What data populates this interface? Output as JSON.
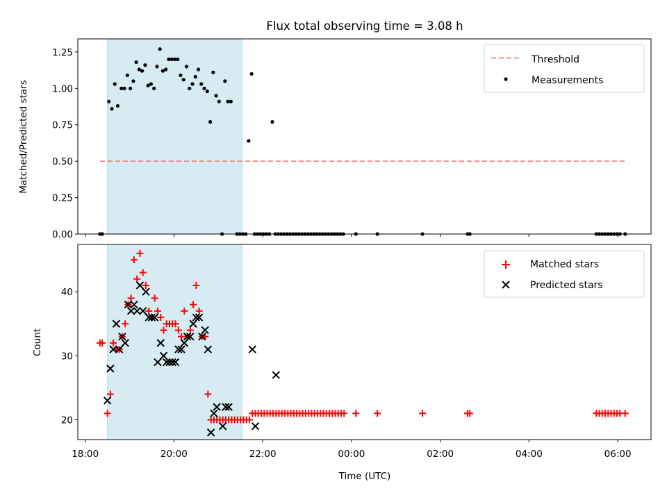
{
  "figure": {
    "title": "Flux total observing time = 3.08 h",
    "shaded_interval": {
      "x": [
        "18:30",
        "21:32"
      ],
      "color": "#add8e6"
    }
  },
  "chart_data": [
    {
      "type": "scatter",
      "title": "Flux total observing time = 3.08 h",
      "ylabel": "Matched/Predicted stars",
      "xlabel": "",
      "xlim": [
        "17:50",
        "06:45"
      ],
      "ylim": [
        0,
        1.34
      ],
      "xticks": [
        "18:00",
        "20:00",
        "22:00",
        "00:00",
        "02:00",
        "04:00",
        "06:00"
      ],
      "yticks": [
        "0.00",
        "0.25",
        "0.50",
        "0.75",
        "1.00",
        "1.25"
      ],
      "legend": {
        "position": "upper right",
        "entries": [
          "Threshold",
          "Measurements"
        ]
      },
      "threshold": {
        "name": "Threshold",
        "value": 0.5,
        "x": [
          "18:20",
          "06:10"
        ],
        "color": "#ff7f7f"
      },
      "series": [
        {
          "name": "Measurements",
          "color": "#000000",
          "marker": "dot",
          "points": [
            [
              "18:20",
              0
            ],
            [
              "18:23",
              0
            ],
            [
              "18:32",
              0.91
            ],
            [
              "18:36",
              0.86
            ],
            [
              "18:40",
              1.03
            ],
            [
              "18:44",
              0.88
            ],
            [
              "18:49",
              1.0
            ],
            [
              "18:53",
              1.0
            ],
            [
              "18:57",
              1.09
            ],
            [
              "19:01",
              1.0
            ],
            [
              "19:05",
              1.05
            ],
            [
              "19:09",
              1.18
            ],
            [
              "19:13",
              1.13
            ],
            [
              "19:17",
              1.12
            ],
            [
              "19:21",
              1.16
            ],
            [
              "19:25",
              1.02
            ],
            [
              "19:29",
              1.03
            ],
            [
              "19:33",
              1.0
            ],
            [
              "19:37",
              1.15
            ],
            [
              "19:41",
              1.27
            ],
            [
              "19:45",
              1.12
            ],
            [
              "19:49",
              1.13
            ],
            [
              "19:53",
              1.2
            ],
            [
              "19:57",
              1.2
            ],
            [
              "20:01",
              1.2
            ],
            [
              "20:05",
              1.2
            ],
            [
              "20:09",
              1.09
            ],
            [
              "20:13",
              1.06
            ],
            [
              "20:17",
              1.15
            ],
            [
              "20:21",
              1.0
            ],
            [
              "20:25",
              1.03
            ],
            [
              "20:29",
              1.08
            ],
            [
              "20:33",
              1.13
            ],
            [
              "20:37",
              1.03
            ],
            [
              "20:41",
              1.0
            ],
            [
              "20:45",
              0.98
            ],
            [
              "20:49",
              0.77
            ],
            [
              "20:53",
              1.11
            ],
            [
              "20:57",
              0.95
            ],
            [
              "21:01",
              0.91
            ],
            [
              "21:05",
              0
            ],
            [
              "21:09",
              1.05
            ],
            [
              "21:13",
              0.91
            ],
            [
              "21:17",
              0.91
            ],
            [
              "21:25",
              0
            ],
            [
              "21:29",
              0
            ],
            [
              "21:33",
              0
            ],
            [
              "21:37",
              0
            ],
            [
              "21:41",
              0.64
            ],
            [
              "21:45",
              1.1
            ],
            [
              "21:49",
              0
            ],
            [
              "21:53",
              0
            ],
            [
              "21:57",
              0
            ],
            [
              "22:01",
              0
            ],
            [
              "22:05",
              0
            ],
            [
              "22:09",
              0
            ],
            [
              "22:13",
              0.77
            ],
            [
              "22:17",
              0
            ],
            [
              "22:21",
              0
            ],
            [
              "22:25",
              0
            ],
            [
              "22:29",
              0
            ],
            [
              "22:33",
              0
            ],
            [
              "22:37",
              0
            ],
            [
              "22:41",
              0
            ],
            [
              "22:45",
              0
            ],
            [
              "22:49",
              0
            ],
            [
              "22:53",
              0
            ],
            [
              "22:57",
              0
            ],
            [
              "23:01",
              0
            ],
            [
              "23:05",
              0
            ],
            [
              "23:09",
              0
            ],
            [
              "23:13",
              0
            ],
            [
              "23:17",
              0
            ],
            [
              "23:21",
              0
            ],
            [
              "23:25",
              0
            ],
            [
              "23:29",
              0
            ],
            [
              "23:33",
              0
            ],
            [
              "23:37",
              0
            ],
            [
              "23:41",
              0
            ],
            [
              "23:45",
              0
            ],
            [
              "23:49",
              0
            ],
            [
              "00:06",
              0
            ],
            [
              "00:35",
              0
            ],
            [
              "01:36",
              0
            ],
            [
              "02:37",
              0
            ],
            [
              "02:40",
              0
            ],
            [
              "05:31",
              0
            ],
            [
              "05:35",
              0
            ],
            [
              "05:39",
              0
            ],
            [
              "05:43",
              0
            ],
            [
              "05:47",
              0
            ],
            [
              "05:51",
              0
            ],
            [
              "05:55",
              0
            ],
            [
              "05:59",
              0
            ],
            [
              "06:03",
              0
            ],
            [
              "06:10",
              0
            ]
          ]
        }
      ]
    },
    {
      "type": "scatter",
      "title": "",
      "ylabel": "Count",
      "xlabel": "Time (UTC)",
      "xlim": [
        "17:50",
        "06:45"
      ],
      "ylim": [
        16.9,
        47.4
      ],
      "xticks": [
        "18:00",
        "20:00",
        "22:00",
        "00:00",
        "02:00",
        "04:00",
        "06:00"
      ],
      "yticks": [
        "20",
        "30",
        "40"
      ],
      "legend": {
        "position": "upper right",
        "entries": [
          "Matched stars",
          "Predicted stars"
        ]
      },
      "series": [
        {
          "name": "Matched stars",
          "color": "#ff0000",
          "marker": "plus",
          "points": [
            [
              "18:20",
              32
            ],
            [
              "18:23",
              32
            ],
            [
              "18:30",
              21
            ],
            [
              "18:34",
              24
            ],
            [
              "18:38",
              32
            ],
            [
              "18:42",
              31
            ],
            [
              "18:46",
              31
            ],
            [
              "18:50",
              33
            ],
            [
              "18:54",
              35
            ],
            [
              "18:58",
              38
            ],
            [
              "19:02",
              39
            ],
            [
              "19:06",
              45
            ],
            [
              "19:10",
              42
            ],
            [
              "19:14",
              46
            ],
            [
              "19:18",
              43
            ],
            [
              "19:22",
              41
            ],
            [
              "19:26",
              37
            ],
            [
              "19:30",
              36
            ],
            [
              "19:34",
              39
            ],
            [
              "19:38",
              37
            ],
            [
              "19:42",
              36
            ],
            [
              "19:46",
              34
            ],
            [
              "19:50",
              35
            ],
            [
              "19:54",
              35
            ],
            [
              "19:58",
              35
            ],
            [
              "20:02",
              35
            ],
            [
              "20:06",
              34
            ],
            [
              "20:10",
              33
            ],
            [
              "20:14",
              37
            ],
            [
              "20:18",
              33
            ],
            [
              "20:22",
              34
            ],
            [
              "20:26",
              38
            ],
            [
              "20:30",
              41
            ],
            [
              "20:34",
              37
            ],
            [
              "20:38",
              33
            ],
            [
              "20:42",
              33
            ],
            [
              "20:46",
              24
            ],
            [
              "20:50",
              20
            ],
            [
              "20:54",
              20
            ],
            [
              "20:58",
              20
            ],
            [
              "21:02",
              20
            ],
            [
              "21:06",
              20
            ],
            [
              "21:10",
              20
            ],
            [
              "21:14",
              20
            ],
            [
              "21:18",
              20
            ],
            [
              "21:22",
              20
            ],
            [
              "21:26",
              20
            ],
            [
              "21:30",
              20
            ],
            [
              "21:34",
              20
            ],
            [
              "21:38",
              20
            ],
            [
              "21:42",
              20
            ],
            [
              "21:46",
              21
            ],
            [
              "21:50",
              21
            ],
            [
              "21:54",
              21
            ],
            [
              "21:58",
              21
            ],
            [
              "22:02",
              21
            ],
            [
              "22:06",
              21
            ],
            [
              "22:10",
              21
            ],
            [
              "22:14",
              21
            ],
            [
              "22:18",
              21
            ],
            [
              "22:22",
              21
            ],
            [
              "22:26",
              21
            ],
            [
              "22:30",
              21
            ],
            [
              "22:34",
              21
            ],
            [
              "22:38",
              21
            ],
            [
              "22:42",
              21
            ],
            [
              "22:46",
              21
            ],
            [
              "22:50",
              21
            ],
            [
              "22:54",
              21
            ],
            [
              "22:58",
              21
            ],
            [
              "23:02",
              21
            ],
            [
              "23:06",
              21
            ],
            [
              "23:10",
              21
            ],
            [
              "23:14",
              21
            ],
            [
              "23:18",
              21
            ],
            [
              "23:22",
              21
            ],
            [
              "23:26",
              21
            ],
            [
              "23:30",
              21
            ],
            [
              "23:34",
              21
            ],
            [
              "23:38",
              21
            ],
            [
              "23:42",
              21
            ],
            [
              "23:46",
              21
            ],
            [
              "23:50",
              21
            ],
            [
              "00:06",
              21
            ],
            [
              "00:35",
              21
            ],
            [
              "01:36",
              21
            ],
            [
              "02:37",
              21
            ],
            [
              "02:40",
              21
            ],
            [
              "05:31",
              21
            ],
            [
              "05:35",
              21
            ],
            [
              "05:39",
              21
            ],
            [
              "05:43",
              21
            ],
            [
              "05:47",
              21
            ],
            [
              "05:51",
              21
            ],
            [
              "05:55",
              21
            ],
            [
              "05:59",
              21
            ],
            [
              "06:03",
              21
            ],
            [
              "06:10",
              21
            ]
          ]
        },
        {
          "name": "Predicted stars",
          "color": "#000000",
          "marker": "x",
          "points": [
            [
              "18:30",
              23
            ],
            [
              "18:34",
              28
            ],
            [
              "18:38",
              31
            ],
            [
              "18:42",
              35
            ],
            [
              "18:46",
              31
            ],
            [
              "18:50",
              33
            ],
            [
              "18:54",
              32
            ],
            [
              "18:58",
              38
            ],
            [
              "19:02",
              37
            ],
            [
              "19:06",
              38
            ],
            [
              "19:10",
              37
            ],
            [
              "19:14",
              41
            ],
            [
              "19:18",
              37
            ],
            [
              "19:22",
              40
            ],
            [
              "19:26",
              36
            ],
            [
              "19:30",
              36
            ],
            [
              "19:34",
              36
            ],
            [
              "19:38",
              29
            ],
            [
              "19:42",
              32
            ],
            [
              "19:46",
              30
            ],
            [
              "19:50",
              29
            ],
            [
              "19:54",
              29
            ],
            [
              "19:58",
              29
            ],
            [
              "20:02",
              29
            ],
            [
              "20:06",
              31
            ],
            [
              "20:10",
              31
            ],
            [
              "20:14",
              32
            ],
            [
              "20:18",
              33
            ],
            [
              "20:22",
              33
            ],
            [
              "20:26",
              35
            ],
            [
              "20:30",
              36
            ],
            [
              "20:34",
              36
            ],
            [
              "20:38",
              33
            ],
            [
              "20:42",
              34
            ],
            [
              "20:46",
              31
            ],
            [
              "20:50",
              18
            ],
            [
              "20:54",
              21
            ],
            [
              "20:58",
              22
            ],
            [
              "21:06",
              19
            ],
            [
              "21:10",
              22
            ],
            [
              "21:14",
              22
            ],
            [
              "21:46",
              31
            ],
            [
              "21:50",
              19
            ],
            [
              "22:18",
              27
            ]
          ]
        }
      ]
    }
  ]
}
